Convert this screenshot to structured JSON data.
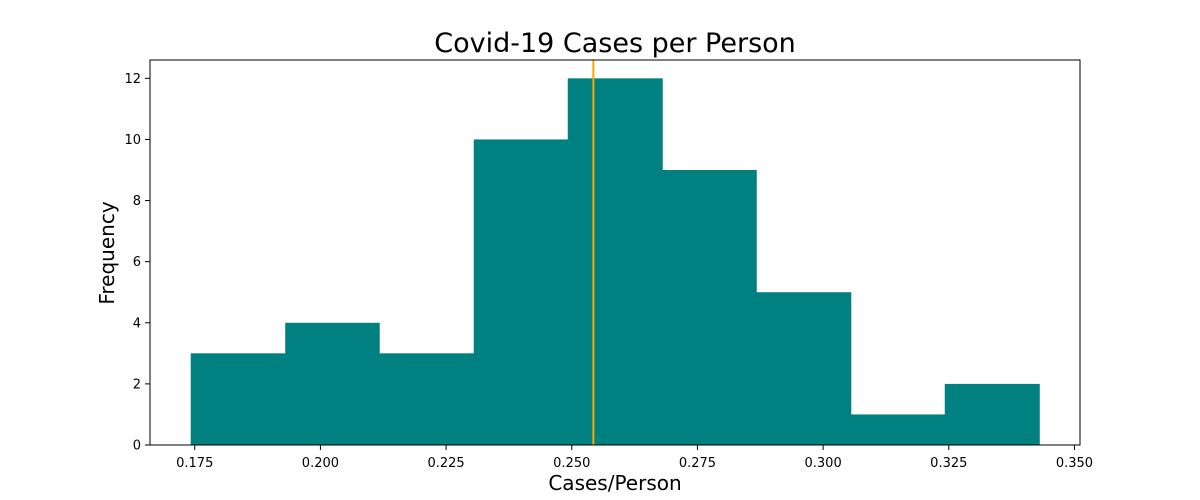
{
  "chart_data": {
    "type": "bar",
    "subtype": "histogram",
    "title": "Covid-19 Cases per Person",
    "xlabel": "Cases/Person",
    "ylabel": "Frequency",
    "bin_edges": [
      0.1742,
      0.193,
      0.2117,
      0.2305,
      0.2492,
      0.268,
      0.2867,
      0.3055,
      0.3242,
      0.343
    ],
    "values": [
      3,
      4,
      3,
      10,
      12,
      9,
      5,
      1,
      2
    ],
    "xlim": [
      0.1661,
      0.3511
    ],
    "ylim": [
      0,
      12.6
    ],
    "x_ticks": [
      0.175,
      0.2,
      0.225,
      0.25,
      0.275,
      0.3,
      0.325,
      0.35
    ],
    "x_tick_labels": [
      "0.175",
      "0.200",
      "0.225",
      "0.250",
      "0.275",
      "0.300",
      "0.325",
      "0.350"
    ],
    "y_ticks": [
      0,
      2,
      4,
      6,
      8,
      10,
      12
    ],
    "y_tick_labels": [
      "0",
      "2",
      "4",
      "6",
      "8",
      "10",
      "12"
    ],
    "vertical_line": {
      "x": 0.2543,
      "color": "#ffa500"
    },
    "bar_color": "#008080",
    "grid": false,
    "legend": "none"
  }
}
